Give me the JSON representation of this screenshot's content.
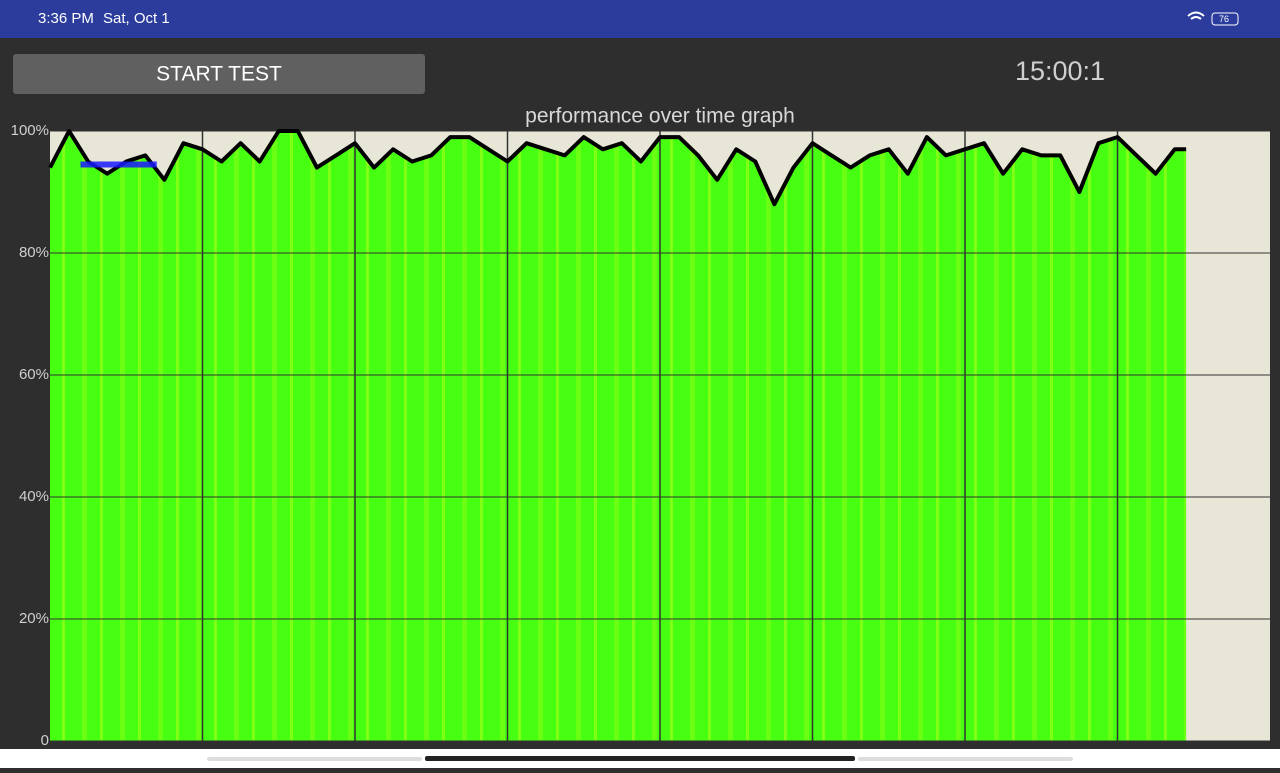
{
  "status_bar": {
    "time": "3:36 PM",
    "date": "Sat, Oct 1",
    "battery": "76"
  },
  "controls": {
    "start_button": "START TEST",
    "timer": "15:00:1"
  },
  "chart_data": {
    "type": "area",
    "title": "performance over time graph",
    "x": [
      0,
      0.125,
      0.25,
      0.375,
      0.5,
      0.625,
      0.75,
      0.875,
      1,
      1.125,
      1.25,
      1.375,
      1.5,
      1.625,
      1.75,
      1.875,
      2,
      2.125,
      2.25,
      2.375,
      2.5,
      2.625,
      2.75,
      2.875,
      3,
      3.125,
      3.25,
      3.375,
      3.5,
      3.625,
      3.75,
      3.875,
      4,
      4.125,
      4.25,
      4.375,
      4.5,
      4.625,
      4.75,
      4.875,
      5,
      5.125,
      5.25,
      5.375,
      5.5,
      5.625,
      5.75,
      5.875,
      6,
      6.125,
      6.25,
      6.375,
      6.5,
      6.625,
      6.75,
      6.875,
      7,
      7.125,
      7.25,
      7.375,
      7.45
    ],
    "values": [
      94,
      100,
      95,
      93,
      95,
      96,
      92,
      98,
      97,
      95,
      98,
      95,
      100,
      100,
      94,
      96,
      98,
      94,
      97,
      95,
      96,
      99,
      99,
      97,
      95,
      98,
      97,
      96,
      99,
      97,
      98,
      95,
      99,
      99,
      96,
      92,
      97,
      95,
      88,
      94,
      98,
      96,
      94,
      96,
      97,
      93,
      99,
      96,
      97,
      98,
      93,
      97,
      96,
      96,
      90,
      98,
      99,
      96,
      93,
      97,
      97
    ],
    "color": "#47ff10",
    "line_color": "#000000",
    "highlight": {
      "x": [
        0.2,
        0.7
      ],
      "values": [
        94.5,
        94.5
      ],
      "color": "#1a1aff"
    },
    "xlim": [
      0,
      8
    ],
    "x_gridlines": [
      1,
      2,
      3,
      4,
      5,
      6,
      7
    ],
    "ylim": [
      0,
      100
    ],
    "yticks": [
      0,
      {
        "value": 20,
        "label": "20%"
      },
      {
        "value": 40,
        "label": "40%"
      },
      {
        "value": 60,
        "label": "60%"
      },
      {
        "value": 80,
        "label": "80%"
      },
      {
        "value": 100,
        "label": "100%"
      }
    ],
    "grid": true
  }
}
